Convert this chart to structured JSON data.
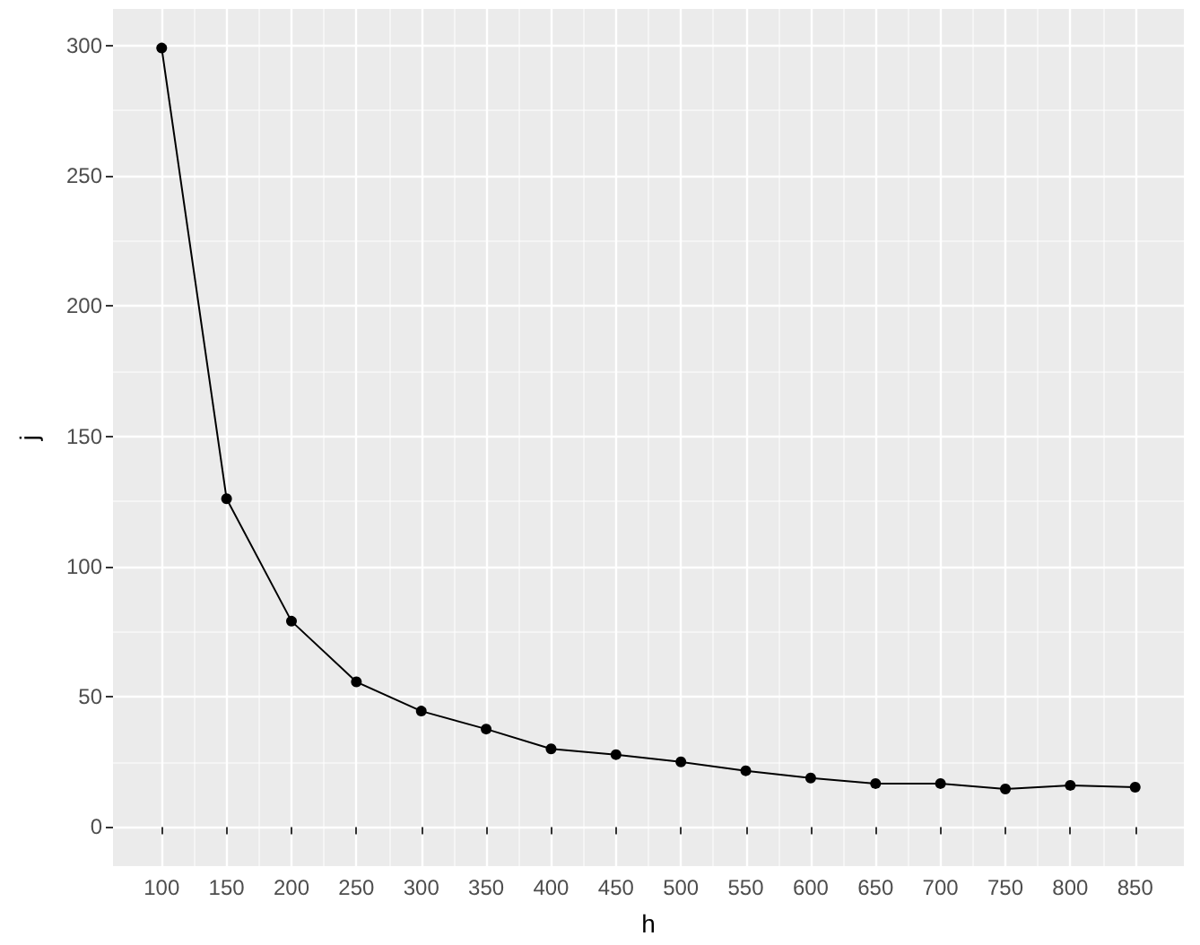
{
  "chart_data": {
    "type": "line",
    "xlabel": "h",
    "ylabel": "j",
    "x": [
      100,
      150,
      200,
      250,
      300,
      350,
      400,
      450,
      500,
      550,
      600,
      650,
      700,
      750,
      800,
      850
    ],
    "series": [
      {
        "color": "#000000",
        "values": [
          299,
          126,
          79,
          55.7,
          44.5,
          37.6,
          30,
          27.8,
          25,
          21.6,
          18.8,
          16.7,
          16.7,
          14.6,
          16,
          15.3
        ]
      }
    ],
    "xlim": [
      62.5,
      887.5
    ],
    "ylim": [
      -15,
      314
    ],
    "xticks": [
      100,
      150,
      200,
      250,
      300,
      350,
      400,
      450,
      500,
      550,
      600,
      650,
      700,
      750,
      800,
      850
    ],
    "yticks": [
      0,
      50,
      100,
      150,
      200,
      250,
      300
    ],
    "grid": true,
    "marker": "circle",
    "line_style": "solid"
  }
}
